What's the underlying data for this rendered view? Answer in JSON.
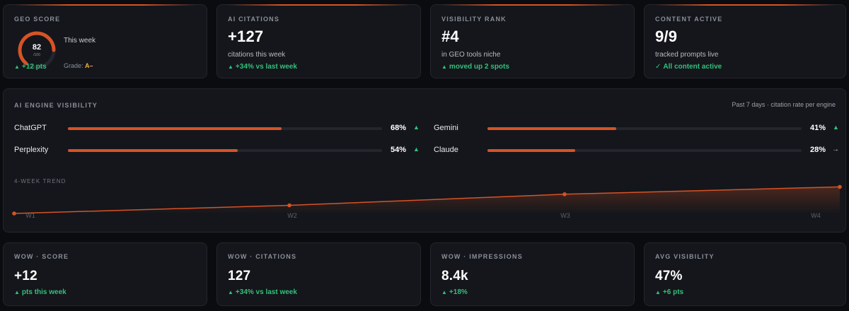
{
  "geo_score": {
    "kicker": "GEO SCORE",
    "score": "82",
    "score_max": "/100",
    "score_fraction": 0.82,
    "period": "This week",
    "delta": "+12 pts",
    "grade_label": "Grade:",
    "grade": "A–"
  },
  "ai_citations": {
    "kicker": "AI CITATIONS",
    "value": "+127",
    "sub": "citations this week",
    "delta": "+34% vs last week"
  },
  "visibility_rank": {
    "kicker": "VISIBILITY RANK",
    "value": "#4",
    "sub": "in GEO tools niche",
    "delta": "moved up 2 spots"
  },
  "content_active": {
    "kicker": "CONTENT ACTIVE",
    "value": "9/9",
    "sub": "tracked prompts live",
    "delta": "All content active"
  },
  "engine_visibility": {
    "kicker": "AI ENGINE VISIBILITY",
    "note": "Past 7 days · citation rate per engine",
    "engines": [
      {
        "name": "ChatGPT",
        "pct_label": "68%",
        "value": 68,
        "trend": "up"
      },
      {
        "name": "Gemini",
        "pct_label": "41%",
        "value": 41,
        "trend": "up"
      },
      {
        "name": "Perplexity",
        "pct_label": "54%",
        "value": 54,
        "trend": "up"
      },
      {
        "name": "Claude",
        "pct_label": "28%",
        "value": 28,
        "trend": "flat"
      }
    ],
    "trend_label": "4-WEEK TREND"
  },
  "chart_data": {
    "type": "area",
    "categories": [
      "W1",
      "W2",
      "W3",
      "W4"
    ],
    "values": [
      1,
      12,
      27,
      37
    ],
    "title": "4-WEEK TREND",
    "xlabel": "",
    "ylabel": "",
    "ylim": [
      0,
      45
    ],
    "grid": false,
    "color": "#d65326"
  },
  "bottom_cards": [
    {
      "kicker": "WOW · SCORE",
      "value": "+12",
      "delta": "pts this week"
    },
    {
      "kicker": "WOW · CITATIONS",
      "value": "127",
      "delta": "+34% vs last week"
    },
    {
      "kicker": "WOW · IMPRESSIONS",
      "value": "8.4k",
      "delta": "+18%"
    },
    {
      "kicker": "AVG VISIBILITY",
      "value": "47%",
      "delta": "+6 pts"
    }
  ],
  "icons": {
    "up_arrow": "▲",
    "check": "✓",
    "flat_arrow": "→"
  },
  "colors": {
    "accent": "#d65326",
    "positive": "#33c07a",
    "grade": "#f0b14a"
  }
}
